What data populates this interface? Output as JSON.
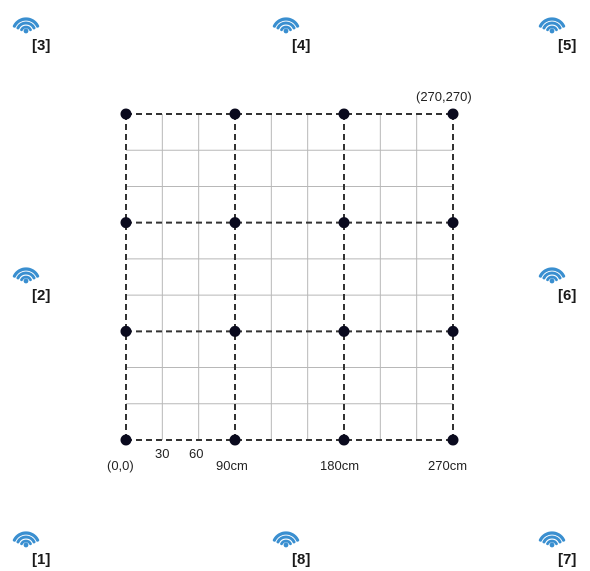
{
  "grid": {
    "corner_label": "(270,270)",
    "origin_label": "(0,0)",
    "x_tick_labels": [
      "30",
      "60",
      "90cm",
      "180cm",
      "270cm"
    ],
    "major_points_cm": [
      0,
      90,
      180,
      270
    ],
    "minor_step_cm": 30,
    "extent_cm": 270
  },
  "access_points": [
    {
      "label": "[1]",
      "icon": "wifi-icon"
    },
    {
      "label": "[2]",
      "icon": "wifi-icon"
    },
    {
      "label": "[3]",
      "icon": "wifi-icon"
    },
    {
      "label": "[4]",
      "icon": "wifi-icon"
    },
    {
      "label": "[5]",
      "icon": "wifi-icon"
    },
    {
      "label": "[6]",
      "icon": "wifi-icon"
    },
    {
      "label": "[7]",
      "icon": "wifi-icon"
    },
    {
      "label": "[8]",
      "icon": "wifi-icon"
    }
  ],
  "colors": {
    "wifi": "#3a8fd0",
    "node": "#0a0a1e",
    "major_line": "#333333",
    "minor_line": "#b8b8b8"
  }
}
